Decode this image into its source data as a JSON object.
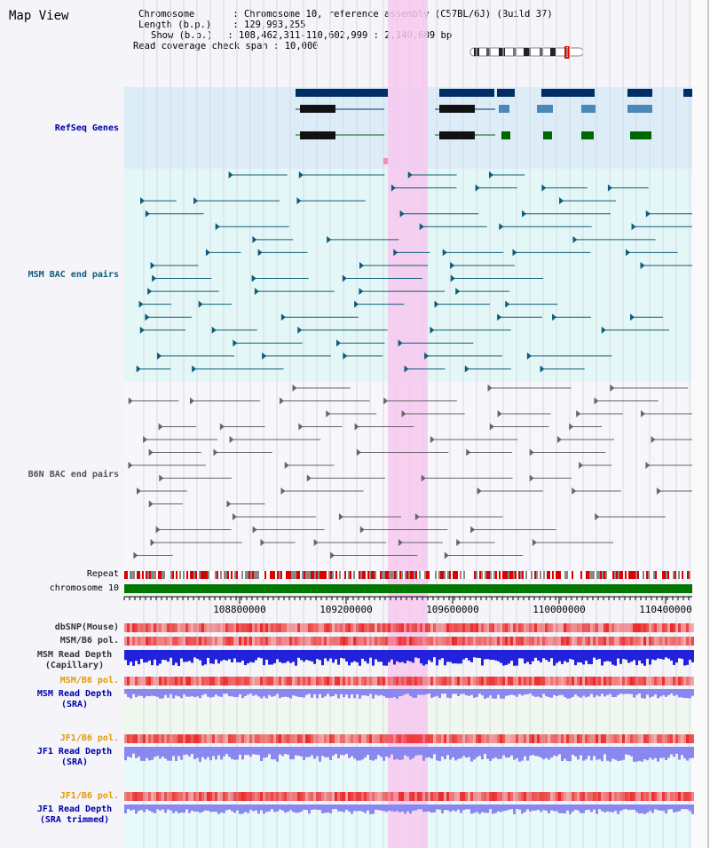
{
  "title": "Map View",
  "info": {
    "chromosome_label": "Chromosome",
    "chromosome_value": "Chromosome 10, reference assembly (C57BL/6J) (Build 37)",
    "length_label": "Length (b.p.)",
    "length_value": "129,993,255",
    "show_label": "Show (b.p.)",
    "show_value": "108,462,311-110,602,999 : 2,140,689 bp",
    "read_label": "Read coverage check span",
    "read_value": "10,000"
  },
  "tracks": {
    "refseq": "RefSeq Genes",
    "msm_bac": "MSM BAC end pairs",
    "b6n_bac": "B6N BAC end pairs",
    "repeat": "Repeat",
    "chromosome": "chromosome 10",
    "dbsnp": "dbSNP(Mouse)",
    "msm_b6_pol": "MSM/B6 pol.",
    "msm_depth_cap": "MSM Read Depth\n(Capillary)",
    "msm_b6_pol2": "MSM/B6 pol.",
    "msm_depth_sra": "MSM Read Depth\n(SRA)",
    "jf1_b6_pol": "JF1/B6 pol.",
    "jf1_depth_sra": "JF1 Read Depth\n(SRA)",
    "jf1_b6_pol2": "JF1/B6 pol.",
    "jf1_depth_trim": "JF1 Read Depth\n(SRA trimmed)"
  },
  "axis_ticks": [
    "108800000",
    "109200000",
    "109600000",
    "110000000",
    "110400000"
  ],
  "colors": {
    "highlight": "#f7c8ef",
    "refseq_bg": "#dcedf8",
    "msm_bg": "#e4f7f7",
    "gene_dark": "#002d66",
    "gene_green": "#006600",
    "chrom_green": "#007700",
    "depth_blue": "#2222dd",
    "depth_violet": "#8888ee",
    "pol_red": "#ee4444",
    "label_blue": "#0000aa",
    "label_orange": "#e69a00",
    "msm_teal": "#0e5c7a"
  }
}
